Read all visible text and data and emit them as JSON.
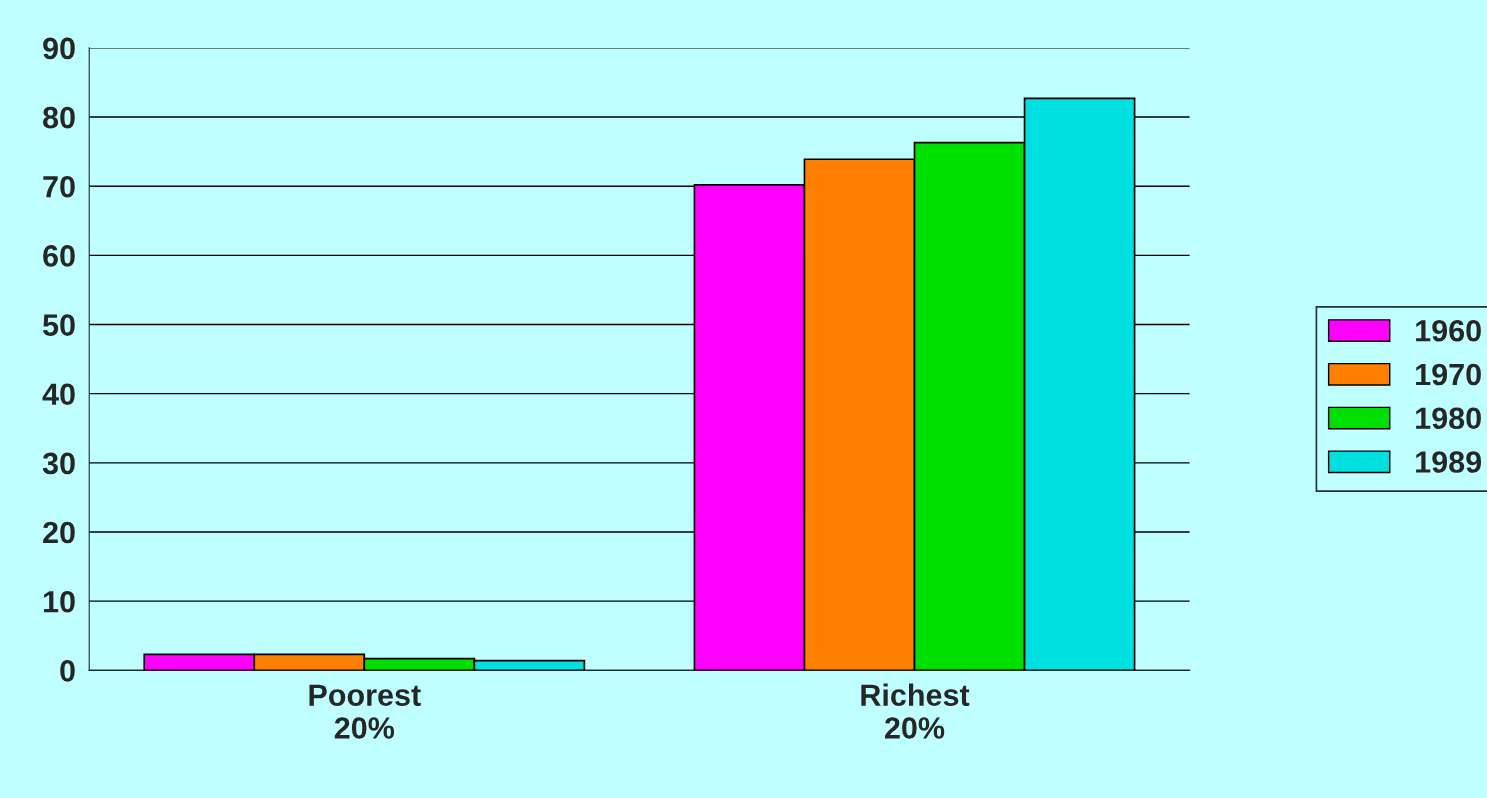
{
  "chart_data": {
    "type": "bar",
    "categories": [
      "Poorest\n20%",
      "Richest\n20%"
    ],
    "series": [
      {
        "name": "1960",
        "color": "#ff00ff",
        "values": [
          2.3,
          70.2
        ]
      },
      {
        "name": "1970",
        "color": "#ff8000",
        "values": [
          2.3,
          73.9
        ]
      },
      {
        "name": "1980",
        "color": "#00e000",
        "values": [
          1.7,
          76.3
        ]
      },
      {
        "name": "1989",
        "color": "#00e0e0",
        "values": [
          1.4,
          82.7
        ]
      }
    ],
    "ylim": [
      0,
      90
    ],
    "yticks": [
      0,
      10,
      20,
      30,
      40,
      50,
      60,
      70,
      80,
      90
    ],
    "grid": "y",
    "legend": "right"
  }
}
